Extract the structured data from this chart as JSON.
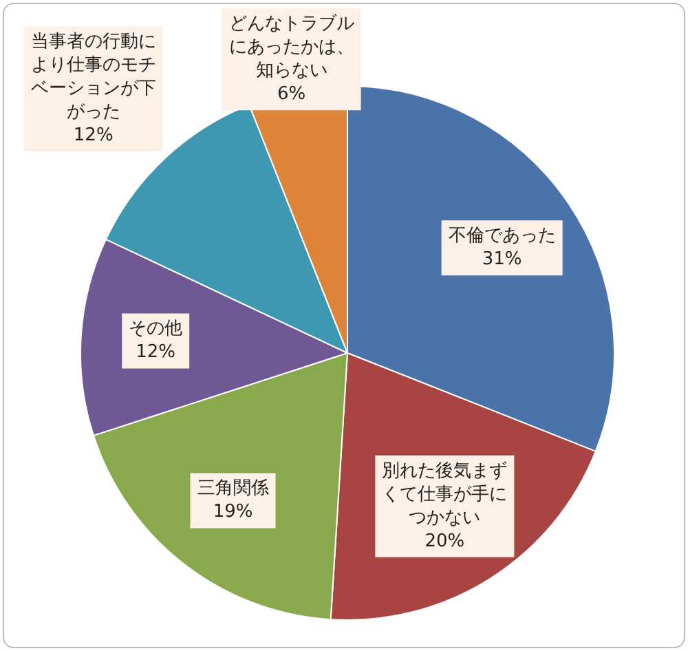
{
  "chart_data": {
    "type": "pie",
    "categories": [
      "不倫であった",
      "別れた後気まずくて仕事が手につかない",
      "三角関係",
      "その他",
      "当事者の行動により仕事のモチベーションが下がった",
      "どんなトラブルにあったかは、知らない"
    ],
    "values": [
      31,
      20,
      19,
      12,
      12,
      6
    ],
    "colors": [
      "#4a73aa",
      "#a84543",
      "#89a94c",
      "#6f5894",
      "#3f98b2",
      "#dd8439"
    ],
    "value_labels": [
      "31%",
      "20%",
      "19%",
      "12%",
      "12%",
      "6%"
    ],
    "legend": false
  }
}
